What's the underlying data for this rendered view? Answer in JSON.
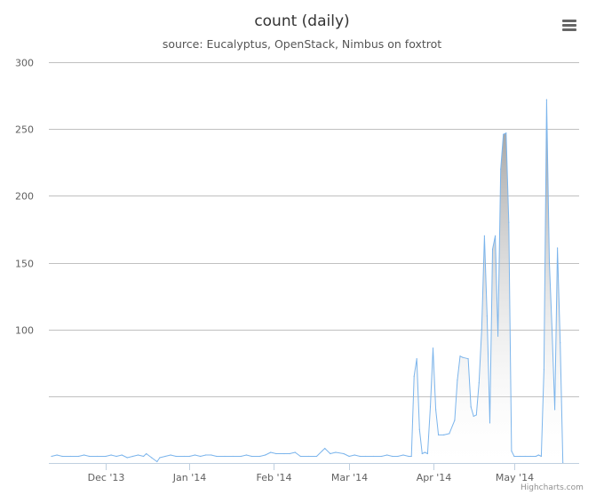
{
  "chart_data": {
    "type": "area",
    "title": "count (daily)",
    "subtitle": "source: Eucalyptus, OpenStack, Nimbus on foxtrot",
    "ylim": [
      0,
      300
    ],
    "yticks": [
      {
        "value": 300,
        "label": "300"
      },
      {
        "value": 250,
        "label": "250"
      },
      {
        "value": 200,
        "label": "200"
      },
      {
        "value": 150,
        "label": "150"
      },
      {
        "value": 100,
        "label": "100"
      },
      {
        "value": 50,
        "label": ""
      }
    ],
    "xlim": [
      "2013-11-10",
      "2014-05-25"
    ],
    "xticks": [
      {
        "date": "2013-12-01",
        "label": "Dec '13"
      },
      {
        "date": "2014-01-01",
        "label": "Jan '14"
      },
      {
        "date": "2014-02-01",
        "label": "Feb '14"
      },
      {
        "date": "2014-03-01",
        "label": "Mar '14"
      },
      {
        "date": "2014-04-01",
        "label": "Apr '14"
      },
      {
        "date": "2014-05-01",
        "label": "May '14"
      }
    ],
    "grid": true,
    "legend": "none",
    "series": [
      {
        "color": "#7cb5ec",
        "points": [
          [
            "2013-11-11",
            5
          ],
          [
            "2013-11-13",
            6
          ],
          [
            "2013-11-15",
            5
          ],
          [
            "2013-11-18",
            5
          ],
          [
            "2013-11-21",
            5
          ],
          [
            "2013-11-23",
            6
          ],
          [
            "2013-11-25",
            5
          ],
          [
            "2013-11-28",
            5
          ],
          [
            "2013-12-01",
            5
          ],
          [
            "2013-12-03",
            6
          ],
          [
            "2013-12-05",
            5
          ],
          [
            "2013-12-07",
            6
          ],
          [
            "2013-12-09",
            4
          ],
          [
            "2013-12-11",
            5
          ],
          [
            "2013-12-13",
            6
          ],
          [
            "2013-12-15",
            5
          ],
          [
            "2013-12-16",
            7
          ],
          [
            "2013-12-18",
            4
          ],
          [
            "2013-12-20",
            1
          ],
          [
            "2013-12-21",
            4
          ],
          [
            "2013-12-23",
            5
          ],
          [
            "2013-12-25",
            6
          ],
          [
            "2013-12-27",
            5
          ],
          [
            "2013-12-30",
            5
          ],
          [
            "2014-01-01",
            5
          ],
          [
            "2014-01-03",
            6
          ],
          [
            "2014-01-05",
            5
          ],
          [
            "2014-01-07",
            6
          ],
          [
            "2014-01-09",
            6
          ],
          [
            "2014-01-11",
            5
          ],
          [
            "2014-01-14",
            5
          ],
          [
            "2014-01-17",
            5
          ],
          [
            "2014-01-20",
            5
          ],
          [
            "2014-01-22",
            6
          ],
          [
            "2014-01-24",
            5
          ],
          [
            "2014-01-27",
            5
          ],
          [
            "2014-01-29",
            6
          ],
          [
            "2014-01-31",
            8
          ],
          [
            "2014-02-02",
            7
          ],
          [
            "2014-02-05",
            7
          ],
          [
            "2014-02-07",
            7
          ],
          [
            "2014-02-09",
            8
          ],
          [
            "2014-02-11",
            5
          ],
          [
            "2014-02-14",
            5
          ],
          [
            "2014-02-17",
            5
          ],
          [
            "2014-02-19",
            9
          ],
          [
            "2014-02-20",
            11
          ],
          [
            "2014-02-22",
            7
          ],
          [
            "2014-02-24",
            8
          ],
          [
            "2014-02-27",
            7
          ],
          [
            "2014-03-01",
            5
          ],
          [
            "2014-03-03",
            6
          ],
          [
            "2014-03-05",
            5
          ],
          [
            "2014-03-07",
            5
          ],
          [
            "2014-03-10",
            5
          ],
          [
            "2014-03-13",
            5
          ],
          [
            "2014-03-15",
            6
          ],
          [
            "2014-03-17",
            5
          ],
          [
            "2014-03-19",
            5
          ],
          [
            "2014-03-21",
            6
          ],
          [
            "2014-03-23",
            5
          ],
          [
            "2014-03-24",
            5
          ],
          [
            "2014-03-25",
            65
          ],
          [
            "2014-03-26",
            78
          ],
          [
            "2014-03-27",
            25
          ],
          [
            "2014-03-28",
            7
          ],
          [
            "2014-03-29",
            8
          ],
          [
            "2014-03-30",
            7
          ],
          [
            "2014-03-31",
            42
          ],
          [
            "2014-04-01",
            86
          ],
          [
            "2014-04-02",
            40
          ],
          [
            "2014-04-03",
            21
          ],
          [
            "2014-04-05",
            21
          ],
          [
            "2014-04-07",
            22
          ],
          [
            "2014-04-09",
            32
          ],
          [
            "2014-04-10",
            62
          ],
          [
            "2014-04-11",
            80
          ],
          [
            "2014-04-12",
            79
          ],
          [
            "2014-04-14",
            78
          ],
          [
            "2014-04-15",
            42
          ],
          [
            "2014-04-16",
            35
          ],
          [
            "2014-04-17",
            36
          ],
          [
            "2014-04-18",
            60
          ],
          [
            "2014-04-19",
            100
          ],
          [
            "2014-04-20",
            170
          ],
          [
            "2014-04-21",
            110
          ],
          [
            "2014-04-22",
            30
          ],
          [
            "2014-04-23",
            160
          ],
          [
            "2014-04-24",
            170
          ],
          [
            "2014-04-25",
            95
          ],
          [
            "2014-04-26",
            220
          ],
          [
            "2014-04-27",
            246
          ],
          [
            "2014-04-28",
            247
          ],
          [
            "2014-04-29",
            180
          ],
          [
            "2014-04-30",
            9
          ],
          [
            "2014-05-01",
            5
          ],
          [
            "2014-05-03",
            5
          ],
          [
            "2014-05-05",
            5
          ],
          [
            "2014-05-07",
            5
          ],
          [
            "2014-05-09",
            5
          ],
          [
            "2014-05-10",
            6
          ],
          [
            "2014-05-11",
            5
          ],
          [
            "2014-05-12",
            70
          ],
          [
            "2014-05-13",
            272
          ],
          [
            "2014-05-14",
            150
          ],
          [
            "2014-05-15",
            100
          ],
          [
            "2014-05-16",
            40
          ],
          [
            "2014-05-17",
            161
          ],
          [
            "2014-05-18",
            90
          ],
          [
            "2014-05-19",
            0
          ]
        ]
      }
    ]
  },
  "ui": {
    "menu_icon": "hamburger-menu-icon",
    "credits": "Highcharts.com"
  }
}
